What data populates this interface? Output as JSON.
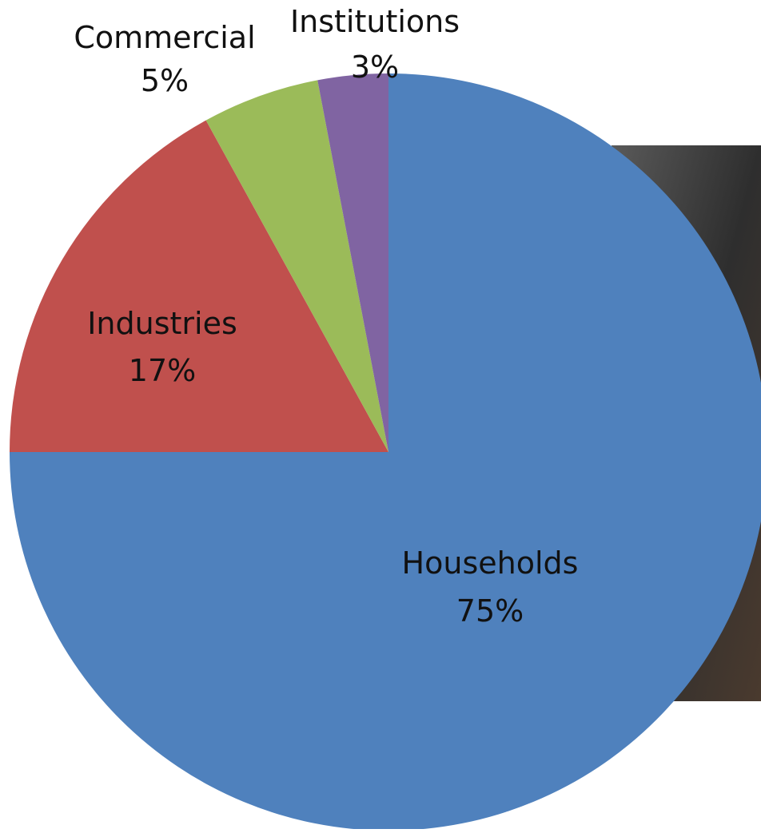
{
  "chart_data": {
    "type": "pie",
    "title": "",
    "slices": [
      {
        "label": "Households",
        "percent_label": "75%",
        "value": 75,
        "color": "#4f81bd"
      },
      {
        "label": "Industries",
        "percent_label": "17%",
        "value": 17,
        "color": "#c0504d"
      },
      {
        "label": "Commercial",
        "percent_label": "5%",
        "value": 5,
        "color": "#9bbb59"
      },
      {
        "label": "Institutions",
        "percent_label": "3%",
        "value": 3,
        "color": "#8064a2"
      }
    ]
  },
  "background": {
    "photo_icon": "photo-background-icon",
    "photo_color": "#3a3a3a"
  }
}
